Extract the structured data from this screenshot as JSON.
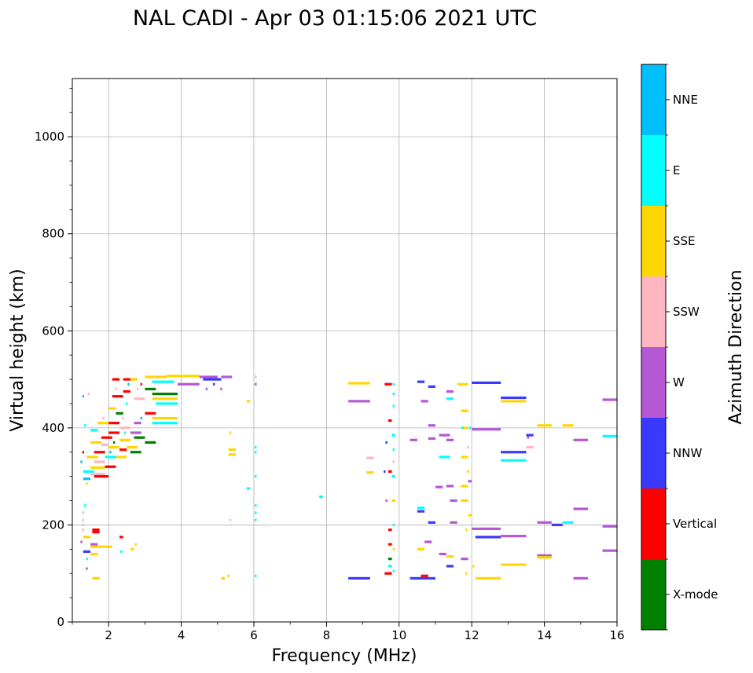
{
  "chart_data": {
    "type": "scatter",
    "title": "NAL CADI - Apr 03 01:15:06 2021 UTC",
    "xlabel": "Frequency (MHz)",
    "ylabel": "Virtual height (km)",
    "xlim": [
      1,
      16
    ],
    "ylim": [
      0,
      1120
    ],
    "xticks": [
      2,
      4,
      6,
      8,
      10,
      12,
      14,
      16
    ],
    "yticks": [
      0,
      200,
      400,
      600,
      800,
      1000
    ],
    "grid": true,
    "colorbar": {
      "label": "Azimuth Direction",
      "entries": [
        {
          "name": "X-mode",
          "color": "#008000"
        },
        {
          "name": "Vertical",
          "color": "#ff0000"
        },
        {
          "name": "NNW",
          "color": "#3a3aff"
        },
        {
          "name": "W",
          "color": "#b657d6"
        },
        {
          "name": "SSW",
          "color": "#ffb6c1"
        },
        {
          "name": "SSE",
          "color": "#ffd700"
        },
        {
          "name": "E",
          "color": "#00ffff"
        },
        {
          "name": "NNE",
          "color": "#00bfff"
        }
      ]
    },
    "segments": [
      {
        "f0": 3.0,
        "f1": 3.6,
        "h": 505,
        "c": "SSE"
      },
      {
        "f0": 3.6,
        "f1": 4.5,
        "h": 507,
        "c": "SSE"
      },
      {
        "f0": 3.2,
        "f1": 3.8,
        "h": 495,
        "c": "E"
      },
      {
        "f0": 3.9,
        "f1": 4.5,
        "h": 490,
        "c": "W"
      },
      {
        "f0": 4.5,
        "f1": 5.0,
        "h": 505,
        "c": "W"
      },
      {
        "f0": 4.6,
        "f1": 5.1,
        "h": 500,
        "c": "NNW"
      },
      {
        "f0": 5.1,
        "f1": 5.4,
        "h": 505,
        "c": "W"
      },
      {
        "f0": 3.2,
        "f1": 3.9,
        "h": 470,
        "c": "X-mode"
      },
      {
        "f0": 3.2,
        "f1": 3.9,
        "h": 460,
        "c": "SSE"
      },
      {
        "f0": 3.3,
        "f1": 3.9,
        "h": 450,
        "c": "E"
      },
      {
        "f0": 3.2,
        "f1": 3.9,
        "h": 420,
        "c": "SSE"
      },
      {
        "f0": 3.2,
        "f1": 3.9,
        "h": 410,
        "c": "E"
      },
      {
        "f0": 3.0,
        "f1": 3.3,
        "h": 370,
        "c": "X-mode"
      },
      {
        "f0": 2.7,
        "f1": 3.0,
        "h": 380,
        "c": "X-mode"
      },
      {
        "f0": 3.0,
        "f1": 3.3,
        "h": 430,
        "c": "Vertical"
      },
      {
        "f0": 3.0,
        "f1": 3.3,
        "h": 480,
        "c": "X-mode"
      },
      {
        "f0": 2.1,
        "f1": 2.3,
        "h": 500,
        "c": "Vertical"
      },
      {
        "f0": 2.4,
        "f1": 2.6,
        "h": 500,
        "c": "Vertical"
      },
      {
        "f0": 2.6,
        "f1": 2.8,
        "h": 500,
        "c": "SSE"
      },
      {
        "f0": 2.1,
        "f1": 2.4,
        "h": 465,
        "c": "Vertical"
      },
      {
        "f0": 2.4,
        "f1": 2.6,
        "h": 475,
        "c": "Vertical"
      },
      {
        "f0": 2.7,
        "f1": 3.0,
        "h": 460,
        "c": "SSW"
      },
      {
        "f0": 2.0,
        "f1": 2.2,
        "h": 440,
        "c": "SSE"
      },
      {
        "f0": 2.2,
        "f1": 2.4,
        "h": 430,
        "c": "X-mode"
      },
      {
        "f0": 2.7,
        "f1": 2.9,
        "h": 410,
        "c": "W"
      },
      {
        "f0": 2.0,
        "f1": 2.3,
        "h": 410,
        "c": "Vertical"
      },
      {
        "f0": 1.7,
        "f1": 2.0,
        "h": 410,
        "c": "SSE"
      },
      {
        "f0": 2.3,
        "f1": 2.6,
        "h": 400,
        "c": "SSW"
      },
      {
        "f0": 1.5,
        "f1": 1.7,
        "h": 395,
        "c": "E"
      },
      {
        "f0": 2.0,
        "f1": 2.3,
        "h": 390,
        "c": "Vertical"
      },
      {
        "f0": 2.6,
        "f1": 2.9,
        "h": 390,
        "c": "W"
      },
      {
        "f0": 1.8,
        "f1": 2.1,
        "h": 380,
        "c": "Vertical"
      },
      {
        "f0": 2.3,
        "f1": 2.6,
        "h": 375,
        "c": "SSE"
      },
      {
        "f0": 1.5,
        "f1": 1.8,
        "h": 370,
        "c": "SSE"
      },
      {
        "f0": 1.8,
        "f1": 2.0,
        "h": 365,
        "c": "SSW"
      },
      {
        "f0": 2.0,
        "f1": 2.3,
        "h": 360,
        "c": "SSE"
      },
      {
        "f0": 2.3,
        "f1": 2.5,
        "h": 355,
        "c": "Vertical"
      },
      {
        "f0": 2.5,
        "f1": 2.8,
        "h": 360,
        "c": "SSE"
      },
      {
        "f0": 1.6,
        "f1": 1.9,
        "h": 350,
        "c": "Vertical"
      },
      {
        "f0": 2.6,
        "f1": 2.9,
        "h": 350,
        "c": "X-mode"
      },
      {
        "f0": 1.4,
        "f1": 1.7,
        "h": 340,
        "c": "SSE"
      },
      {
        "f0": 1.9,
        "f1": 2.2,
        "h": 340,
        "c": "E"
      },
      {
        "f0": 2.2,
        "f1": 2.5,
        "h": 340,
        "c": "SSE"
      },
      {
        "f0": 1.6,
        "f1": 1.9,
        "h": 330,
        "c": "SSW"
      },
      {
        "f0": 1.9,
        "f1": 2.2,
        "h": 320,
        "c": "Vertical"
      },
      {
        "f0": 1.5,
        "f1": 1.9,
        "h": 318,
        "c": "SSE"
      },
      {
        "f0": 1.3,
        "f1": 1.6,
        "h": 310,
        "c": "E"
      },
      {
        "f0": 1.5,
        "f1": 1.9,
        "h": 305,
        "c": "SSW"
      },
      {
        "f0": 1.6,
        "f1": 2.0,
        "h": 300,
        "c": "Vertical"
      },
      {
        "f0": 1.3,
        "f1": 1.5,
        "h": 295,
        "c": "NNE"
      },
      {
        "f0": 1.55,
        "f1": 1.75,
        "h": 190,
        "c": "Vertical"
      },
      {
        "f0": 1.55,
        "f1": 1.75,
        "h": 185,
        "c": "Vertical"
      },
      {
        "f0": 1.3,
        "f1": 1.5,
        "h": 175,
        "c": "SSE"
      },
      {
        "f0": 1.5,
        "f1": 1.7,
        "h": 160,
        "c": "W"
      },
      {
        "f0": 1.5,
        "f1": 1.8,
        "h": 155,
        "c": "SSE"
      },
      {
        "f0": 1.8,
        "f1": 2.1,
        "h": 155,
        "c": "SSE"
      },
      {
        "f0": 1.3,
        "f1": 1.5,
        "h": 145,
        "c": "NNW"
      },
      {
        "f0": 1.5,
        "f1": 1.7,
        "h": 140,
        "c": "SSE"
      },
      {
        "f0": 2.3,
        "f1": 2.4,
        "h": 175,
        "c": "Vertical"
      },
      {
        "f0": 2.6,
        "f1": 2.7,
        "h": 150,
        "c": "SSE"
      },
      {
        "f0": 1.55,
        "f1": 1.75,
        "h": 90,
        "c": "SSE"
      },
      {
        "f0": 5.3,
        "f1": 5.5,
        "h": 355,
        "c": "SSE"
      },
      {
        "f0": 5.3,
        "f1": 5.5,
        "h": 345,
        "c": "SSE"
      },
      {
        "f0": 5.8,
        "f1": 5.9,
        "h": 455,
        "c": "SSE"
      },
      {
        "f0": 5.8,
        "f1": 5.9,
        "h": 275,
        "c": "E"
      },
      {
        "f0": 5.1,
        "f1": 5.2,
        "h": 90,
        "c": "SSE"
      },
      {
        "f0": 7.8,
        "f1": 7.9,
        "h": 258,
        "c": "E"
      },
      {
        "f0": 8.6,
        "f1": 9.2,
        "h": 492,
        "c": "SSE"
      },
      {
        "f0": 8.6,
        "f1": 9.2,
        "h": 455,
        "c": "W"
      },
      {
        "f0": 8.6,
        "f1": 9.2,
        "h": 90,
        "c": "NNW"
      },
      {
        "f0": 9.1,
        "f1": 9.3,
        "h": 338,
        "c": "SSW"
      },
      {
        "f0": 9.1,
        "f1": 9.3,
        "h": 308,
        "c": "SSE"
      },
      {
        "f0": 9.6,
        "f1": 9.8,
        "h": 490,
        "c": "Vertical"
      },
      {
        "f0": 9.7,
        "f1": 9.8,
        "h": 415,
        "c": "Vertical"
      },
      {
        "f0": 9.7,
        "f1": 9.8,
        "h": 310,
        "c": "Vertical"
      },
      {
        "f0": 9.7,
        "f1": 9.8,
        "h": 190,
        "c": "Vertical"
      },
      {
        "f0": 9.7,
        "f1": 9.8,
        "h": 160,
        "c": "Vertical"
      },
      {
        "f0": 9.7,
        "f1": 9.8,
        "h": 130,
        "c": "X-mode"
      },
      {
        "f0": 9.7,
        "f1": 9.8,
        "h": 115,
        "c": "E"
      },
      {
        "f0": 9.6,
        "f1": 9.8,
        "h": 100,
        "c": "Vertical"
      },
      {
        "f0": 9.8,
        "f1": 9.9,
        "h": 385,
        "c": "E"
      },
      {
        "f0": 9.8,
        "f1": 9.9,
        "h": 300,
        "c": "E"
      },
      {
        "f0": 9.8,
        "f1": 9.9,
        "h": 250,
        "c": "SSE"
      },
      {
        "f0": 10.3,
        "f1": 10.5,
        "h": 375,
        "c": "W"
      },
      {
        "f0": 10.5,
        "f1": 10.7,
        "h": 495,
        "c": "NNW"
      },
      {
        "f0": 10.6,
        "f1": 10.8,
        "h": 455,
        "c": "W"
      },
      {
        "f0": 10.8,
        "f1": 11.0,
        "h": 485,
        "c": "NNW"
      },
      {
        "f0": 10.8,
        "f1": 11.0,
        "h": 405,
        "c": "W"
      },
      {
        "f0": 10.8,
        "f1": 11.0,
        "h": 378,
        "c": "W"
      },
      {
        "f0": 10.5,
        "f1": 10.7,
        "h": 235,
        "c": "E"
      },
      {
        "f0": 10.5,
        "f1": 10.7,
        "h": 228,
        "c": "NNW"
      },
      {
        "f0": 10.8,
        "f1": 11.0,
        "h": 205,
        "c": "NNW"
      },
      {
        "f0": 10.5,
        "f1": 10.7,
        "h": 150,
        "c": "SSE"
      },
      {
        "f0": 10.7,
        "f1": 10.9,
        "h": 165,
        "c": "W"
      },
      {
        "f0": 10.3,
        "f1": 11.0,
        "h": 90,
        "c": "NNW"
      },
      {
        "f0": 10.6,
        "f1": 10.8,
        "h": 95,
        "c": "Vertical"
      },
      {
        "f0": 11.0,
        "f1": 11.2,
        "h": 278,
        "c": "W"
      },
      {
        "f0": 11.1,
        "f1": 11.4,
        "h": 385,
        "c": "W"
      },
      {
        "f0": 11.1,
        "f1": 11.4,
        "h": 340,
        "c": "E"
      },
      {
        "f0": 11.3,
        "f1": 11.5,
        "h": 475,
        "c": "W"
      },
      {
        "f0": 11.3,
        "f1": 11.5,
        "h": 460,
        "c": "E"
      },
      {
        "f0": 11.3,
        "f1": 11.5,
        "h": 280,
        "c": "W"
      },
      {
        "f0": 11.3,
        "f1": 11.5,
        "h": 375,
        "c": "W"
      },
      {
        "f0": 11.4,
        "f1": 11.6,
        "h": 250,
        "c": "W"
      },
      {
        "f0": 11.4,
        "f1": 11.6,
        "h": 205,
        "c": "W"
      },
      {
        "f0": 11.3,
        "f1": 11.5,
        "h": 135,
        "c": "SSE"
      },
      {
        "f0": 11.1,
        "f1": 11.3,
        "h": 140,
        "c": "W"
      },
      {
        "f0": 11.3,
        "f1": 11.5,
        "h": 115,
        "c": "NNW"
      },
      {
        "f0": 11.7,
        "f1": 11.9,
        "h": 435,
        "c": "SSE"
      },
      {
        "f0": 11.7,
        "f1": 11.9,
        "h": 400,
        "c": "SSE"
      },
      {
        "f0": 11.7,
        "f1": 11.9,
        "h": 340,
        "c": "SSE"
      },
      {
        "f0": 11.7,
        "f1": 11.9,
        "h": 280,
        "c": "SSE"
      },
      {
        "f0": 11.7,
        "f1": 11.9,
        "h": 250,
        "c": "SSE"
      },
      {
        "f0": 11.7,
        "f1": 11.9,
        "h": 130,
        "c": "W"
      },
      {
        "f0": 11.6,
        "f1": 11.9,
        "h": 490,
        "c": "SSE"
      },
      {
        "f0": 11.9,
        "f1": 12.0,
        "h": 290,
        "c": "W"
      },
      {
        "f0": 11.9,
        "f1": 12.0,
        "h": 220,
        "c": "SSE"
      },
      {
        "f0": 12.0,
        "f1": 12.8,
        "h": 493,
        "c": "NNW"
      },
      {
        "f0": 12.0,
        "f1": 12.8,
        "h": 397,
        "c": "W"
      },
      {
        "f0": 12.0,
        "f1": 12.8,
        "h": 192,
        "c": "W"
      },
      {
        "f0": 12.1,
        "f1": 12.8,
        "h": 175,
        "c": "NNW"
      },
      {
        "f0": 12.1,
        "f1": 12.8,
        "h": 90,
        "c": "SSE"
      },
      {
        "f0": 12.8,
        "f1": 13.5,
        "h": 462,
        "c": "NNW"
      },
      {
        "f0": 12.8,
        "f1": 13.5,
        "h": 455,
        "c": "SSE"
      },
      {
        "f0": 12.8,
        "f1": 13.5,
        "h": 350,
        "c": "NNW"
      },
      {
        "f0": 12.8,
        "f1": 13.5,
        "h": 333,
        "c": "E"
      },
      {
        "f0": 12.8,
        "f1": 13.5,
        "h": 177,
        "c": "W"
      },
      {
        "f0": 12.8,
        "f1": 13.5,
        "h": 118,
        "c": "SSE"
      },
      {
        "f0": 13.5,
        "f1": 13.7,
        "h": 385,
        "c": "NNW"
      },
      {
        "f0": 13.5,
        "f1": 13.7,
        "h": 360,
        "c": "SSW"
      },
      {
        "f0": 13.8,
        "f1": 14.2,
        "h": 405,
        "c": "SSE"
      },
      {
        "f0": 13.8,
        "f1": 14.2,
        "h": 205,
        "c": "W"
      },
      {
        "f0": 13.8,
        "f1": 14.2,
        "h": 137,
        "c": "W"
      },
      {
        "f0": 13.8,
        "f1": 14.2,
        "h": 133,
        "c": "SSE"
      },
      {
        "f0": 14.2,
        "f1": 14.5,
        "h": 200,
        "c": "NNW"
      },
      {
        "f0": 14.5,
        "f1": 14.8,
        "h": 405,
        "c": "SSE"
      },
      {
        "f0": 14.5,
        "f1": 14.8,
        "h": 205,
        "c": "E"
      },
      {
        "f0": 14.8,
        "f1": 15.2,
        "h": 375,
        "c": "W"
      },
      {
        "f0": 14.8,
        "f1": 15.2,
        "h": 233,
        "c": "W"
      },
      {
        "f0": 14.8,
        "f1": 15.2,
        "h": 90,
        "c": "W"
      },
      {
        "f0": 15.6,
        "f1": 16.0,
        "h": 458,
        "c": "W"
      },
      {
        "f0": 15.6,
        "f1": 16.0,
        "h": 383,
        "c": "E"
      },
      {
        "f0": 15.6,
        "f1": 16.0,
        "h": 197,
        "c": "W"
      },
      {
        "f0": 15.6,
        "f1": 16.0,
        "h": 147,
        "c": "W"
      }
    ],
    "points": [
      {
        "f": 1.35,
        "h": 405,
        "c": "E"
      },
      {
        "f": 1.45,
        "h": 470,
        "c": "SSW"
      },
      {
        "f": 1.3,
        "h": 465,
        "c": "NNE"
      },
      {
        "f": 1.3,
        "h": 350,
        "c": "Vertical"
      },
      {
        "f": 1.25,
        "h": 330,
        "c": "NNE"
      },
      {
        "f": 1.4,
        "h": 285,
        "c": "SSE"
      },
      {
        "f": 1.35,
        "h": 240,
        "c": "E"
      },
      {
        "f": 1.3,
        "h": 225,
        "c": "SSW"
      },
      {
        "f": 1.3,
        "h": 210,
        "c": "SSW"
      },
      {
        "f": 1.3,
        "h": 200,
        "c": "SSW"
      },
      {
        "f": 1.3,
        "h": 190,
        "c": "SSW"
      },
      {
        "f": 1.25,
        "h": 165,
        "c": "W"
      },
      {
        "f": 1.4,
        "h": 130,
        "c": "E"
      },
      {
        "f": 1.4,
        "h": 110,
        "c": "W"
      },
      {
        "f": 2.35,
        "h": 145,
        "c": "E"
      },
      {
        "f": 2.75,
        "h": 160,
        "c": "SSE"
      },
      {
        "f": 2.2,
        "h": 480,
        "c": "SSW"
      },
      {
        "f": 2.9,
        "h": 490,
        "c": "Vertical"
      },
      {
        "f": 2.8,
        "h": 480,
        "c": "SSW"
      },
      {
        "f": 2.55,
        "h": 490,
        "c": "NNE"
      },
      {
        "f": 2.5,
        "h": 450,
        "c": "E"
      },
      {
        "f": 2.9,
        "h": 420,
        "c": "NNE"
      },
      {
        "f": 2.4,
        "h": 420,
        "c": "SSW"
      },
      {
        "f": 2.45,
        "h": 390,
        "c": "E"
      },
      {
        "f": 2.15,
        "h": 370,
        "c": "X-mode"
      },
      {
        "f": 2.05,
        "h": 350,
        "c": "NNE"
      },
      {
        "f": 1.85,
        "h": 420,
        "c": "SSW"
      },
      {
        "f": 4.7,
        "h": 480,
        "c": "W"
      },
      {
        "f": 5.1,
        "h": 480,
        "c": "W"
      },
      {
        "f": 4.9,
        "h": 490,
        "c": "NNW"
      },
      {
        "f": 5.35,
        "h": 390,
        "c": "SSE"
      },
      {
        "f": 5.35,
        "h": 210,
        "c": "SSW"
      },
      {
        "f": 5.3,
        "h": 95,
        "c": "SSE"
      },
      {
        "f": 6.05,
        "h": 505,
        "c": "SSW"
      },
      {
        "f": 6.05,
        "h": 490,
        "c": "W"
      },
      {
        "f": 6.05,
        "h": 360,
        "c": "E"
      },
      {
        "f": 6.05,
        "h": 350,
        "c": "E"
      },
      {
        "f": 6.05,
        "h": 300,
        "c": "E"
      },
      {
        "f": 6.05,
        "h": 240,
        "c": "E"
      },
      {
        "f": 6.05,
        "h": 225,
        "c": "E"
      },
      {
        "f": 6.05,
        "h": 210,
        "c": "E"
      },
      {
        "f": 6.05,
        "h": 95,
        "c": "E"
      },
      {
        "f": 9.85,
        "h": 490,
        "c": "E"
      },
      {
        "f": 9.85,
        "h": 470,
        "c": "E"
      },
      {
        "f": 9.85,
        "h": 445,
        "c": "E"
      },
      {
        "f": 9.85,
        "h": 355,
        "c": "E"
      },
      {
        "f": 9.85,
        "h": 330,
        "c": "SSW"
      },
      {
        "f": 9.85,
        "h": 200,
        "c": "E"
      },
      {
        "f": 9.85,
        "h": 150,
        "c": "SSE"
      },
      {
        "f": 9.85,
        "h": 105,
        "c": "E"
      },
      {
        "f": 9.65,
        "h": 370,
        "c": "NNW"
      },
      {
        "f": 9.65,
        "h": 250,
        "c": "W"
      },
      {
        "f": 9.6,
        "h": 310,
        "c": "NNW"
      },
      {
        "f": 11.95,
        "h": 400,
        "c": "E"
      },
      {
        "f": 11.9,
        "h": 360,
        "c": "SSW"
      },
      {
        "f": 11.9,
        "h": 310,
        "c": "SSE"
      },
      {
        "f": 11.85,
        "h": 190,
        "c": "SSE"
      },
      {
        "f": 11.85,
        "h": 100,
        "c": "SSE"
      },
      {
        "f": 11.75,
        "h": 400,
        "c": "E"
      },
      {
        "f": 12.05,
        "h": 115,
        "c": "SSE"
      },
      {
        "f": 13.55,
        "h": 380,
        "c": "W"
      }
    ]
  }
}
